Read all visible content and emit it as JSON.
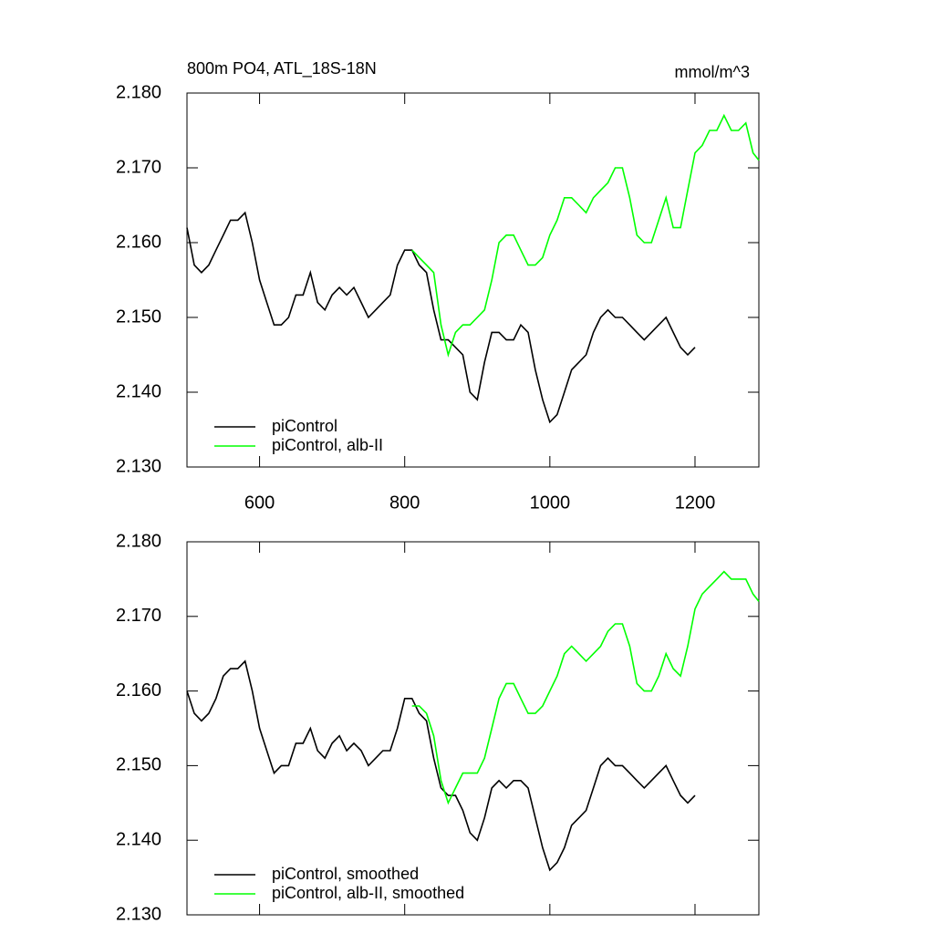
{
  "chart_data": [
    {
      "type": "line",
      "title": "800m PO4, ATL_18S-18N",
      "units_label": "mmol/m^3",
      "xlim": [
        500,
        1288
      ],
      "xticks": [
        600,
        800,
        1000,
        1200
      ],
      "xtick_labels": true,
      "ylim": [
        2.13,
        2.18
      ],
      "yticks": [
        {
          "value": 2.13,
          "label": "2.130"
        },
        {
          "value": 2.14,
          "label": "2.140"
        },
        {
          "value": 2.15,
          "label": "2.150"
        },
        {
          "value": 2.16,
          "label": "2.160"
        },
        {
          "value": 2.17,
          "label": "2.170"
        },
        {
          "value": 2.18,
          "label": "2.180"
        }
      ],
      "legend": "lower-left",
      "series": [
        {
          "name": "piControl",
          "color": "#000000",
          "x": [
            500,
            510,
            520,
            530,
            540,
            550,
            560,
            570,
            580,
            590,
            600,
            610,
            620,
            630,
            640,
            650,
            660,
            670,
            680,
            690,
            700,
            710,
            720,
            730,
            740,
            750,
            760,
            770,
            780,
            790,
            800,
            810,
            820,
            830,
            840,
            850,
            860,
            870,
            880,
            890,
            900,
            910,
            920,
            930,
            940,
            950,
            960,
            970,
            980,
            990,
            1000,
            1010,
            1020,
            1030,
            1040,
            1050,
            1060,
            1070,
            1080,
            1090,
            1100,
            1110,
            1120,
            1130,
            1140,
            1150,
            1160,
            1170,
            1180,
            1190,
            1200
          ],
          "values": [
            2.162,
            2.157,
            2.156,
            2.157,
            2.159,
            2.161,
            2.163,
            2.163,
            2.164,
            2.16,
            2.155,
            2.152,
            2.149,
            2.149,
            2.15,
            2.153,
            2.153,
            2.156,
            2.152,
            2.151,
            2.153,
            2.154,
            2.153,
            2.154,
            2.152,
            2.15,
            2.151,
            2.152,
            2.153,
            2.157,
            2.159,
            2.159,
            2.157,
            2.156,
            2.151,
            2.147,
            2.147,
            2.146,
            2.145,
            2.14,
            2.139,
            2.144,
            2.148,
            2.148,
            2.147,
            2.147,
            2.149,
            2.148,
            2.143,
            2.139,
            2.136,
            2.137,
            2.14,
            2.143,
            2.144,
            2.145,
            2.148,
            2.15,
            2.151,
            2.15,
            2.15,
            2.149,
            2.148,
            2.147,
            2.148,
            2.149,
            2.15,
            2.148,
            2.146,
            2.145,
            2.146
          ]
        },
        {
          "name": "piControl, alb-II",
          "color": "#00ff00",
          "x": [
            810,
            820,
            830,
            840,
            850,
            860,
            870,
            880,
            890,
            900,
            910,
            920,
            930,
            940,
            950,
            960,
            970,
            980,
            990,
            1000,
            1010,
            1020,
            1030,
            1040,
            1050,
            1060,
            1070,
            1080,
            1090,
            1100,
            1110,
            1120,
            1130,
            1140,
            1150,
            1160,
            1170,
            1180,
            1190,
            1200,
            1210,
            1220,
            1230,
            1240,
            1250,
            1260,
            1270,
            1280,
            1288
          ],
          "values": [
            2.159,
            2.158,
            2.157,
            2.156,
            2.149,
            2.145,
            2.148,
            2.149,
            2.149,
            2.15,
            2.151,
            2.155,
            2.16,
            2.161,
            2.161,
            2.159,
            2.157,
            2.157,
            2.158,
            2.161,
            2.163,
            2.166,
            2.166,
            2.165,
            2.164,
            2.166,
            2.167,
            2.168,
            2.17,
            2.17,
            2.166,
            2.161,
            2.16,
            2.16,
            2.163,
            2.166,
            2.162,
            2.162,
            2.167,
            2.172,
            2.173,
            2.175,
            2.175,
            2.177,
            2.175,
            2.175,
            2.176,
            2.172,
            2.171
          ]
        }
      ]
    },
    {
      "type": "line",
      "xlim": [
        500,
        1288
      ],
      "xticks": [
        600,
        800,
        1000,
        1200
      ],
      "xtick_labels": false,
      "ylim": [
        2.13,
        2.18
      ],
      "yticks": [
        {
          "value": 2.13,
          "label": "2.130"
        },
        {
          "value": 2.14,
          "label": "2.140"
        },
        {
          "value": 2.15,
          "label": "2.150"
        },
        {
          "value": 2.16,
          "label": "2.160"
        },
        {
          "value": 2.17,
          "label": "2.170"
        },
        {
          "value": 2.18,
          "label": "2.180"
        }
      ],
      "legend": "lower-left",
      "series": [
        {
          "name": "piControl, smoothed",
          "color": "#000000",
          "x": [
            500,
            510,
            520,
            530,
            540,
            550,
            560,
            570,
            580,
            590,
            600,
            610,
            620,
            630,
            640,
            650,
            660,
            670,
            680,
            690,
            700,
            710,
            720,
            730,
            740,
            750,
            760,
            770,
            780,
            790,
            800,
            810,
            820,
            830,
            840,
            850,
            860,
            870,
            880,
            890,
            900,
            910,
            920,
            930,
            940,
            950,
            960,
            970,
            980,
            990,
            1000,
            1010,
            1020,
            1030,
            1040,
            1050,
            1060,
            1070,
            1080,
            1090,
            1100,
            1110,
            1120,
            1130,
            1140,
            1150,
            1160,
            1170,
            1180,
            1190,
            1200
          ],
          "values": [
            2.16,
            2.157,
            2.156,
            2.157,
            2.159,
            2.162,
            2.163,
            2.163,
            2.164,
            2.16,
            2.155,
            2.152,
            2.149,
            2.15,
            2.15,
            2.153,
            2.153,
            2.155,
            2.152,
            2.151,
            2.153,
            2.154,
            2.152,
            2.153,
            2.152,
            2.15,
            2.151,
            2.152,
            2.152,
            2.155,
            2.159,
            2.159,
            2.157,
            2.156,
            2.151,
            2.147,
            2.146,
            2.146,
            2.144,
            2.141,
            2.14,
            2.143,
            2.147,
            2.148,
            2.147,
            2.148,
            2.148,
            2.147,
            2.143,
            2.139,
            2.136,
            2.137,
            2.139,
            2.142,
            2.143,
            2.144,
            2.147,
            2.15,
            2.151,
            2.15,
            2.15,
            2.149,
            2.148,
            2.147,
            2.148,
            2.149,
            2.15,
            2.148,
            2.146,
            2.145,
            2.146
          ]
        },
        {
          "name": "piControl, alb-II, smoothed",
          "color": "#00ff00",
          "x": [
            810,
            820,
            830,
            840,
            850,
            860,
            870,
            880,
            890,
            900,
            910,
            920,
            930,
            940,
            950,
            960,
            970,
            980,
            990,
            1000,
            1010,
            1020,
            1030,
            1040,
            1050,
            1060,
            1070,
            1080,
            1090,
            1100,
            1110,
            1120,
            1130,
            1140,
            1150,
            1160,
            1170,
            1180,
            1190,
            1200,
            1210,
            1220,
            1230,
            1240,
            1250,
            1260,
            1270,
            1280,
            1288
          ],
          "values": [
            2.158,
            2.158,
            2.157,
            2.154,
            2.148,
            2.145,
            2.147,
            2.149,
            2.149,
            2.149,
            2.151,
            2.155,
            2.159,
            2.161,
            2.161,
            2.159,
            2.157,
            2.157,
            2.158,
            2.16,
            2.162,
            2.165,
            2.166,
            2.165,
            2.164,
            2.165,
            2.166,
            2.168,
            2.169,
            2.169,
            2.166,
            2.161,
            2.16,
            2.16,
            2.162,
            2.165,
            2.163,
            2.162,
            2.166,
            2.171,
            2.173,
            2.174,
            2.175,
            2.176,
            2.175,
            2.175,
            2.175,
            2.173,
            2.172
          ]
        }
      ]
    }
  ]
}
